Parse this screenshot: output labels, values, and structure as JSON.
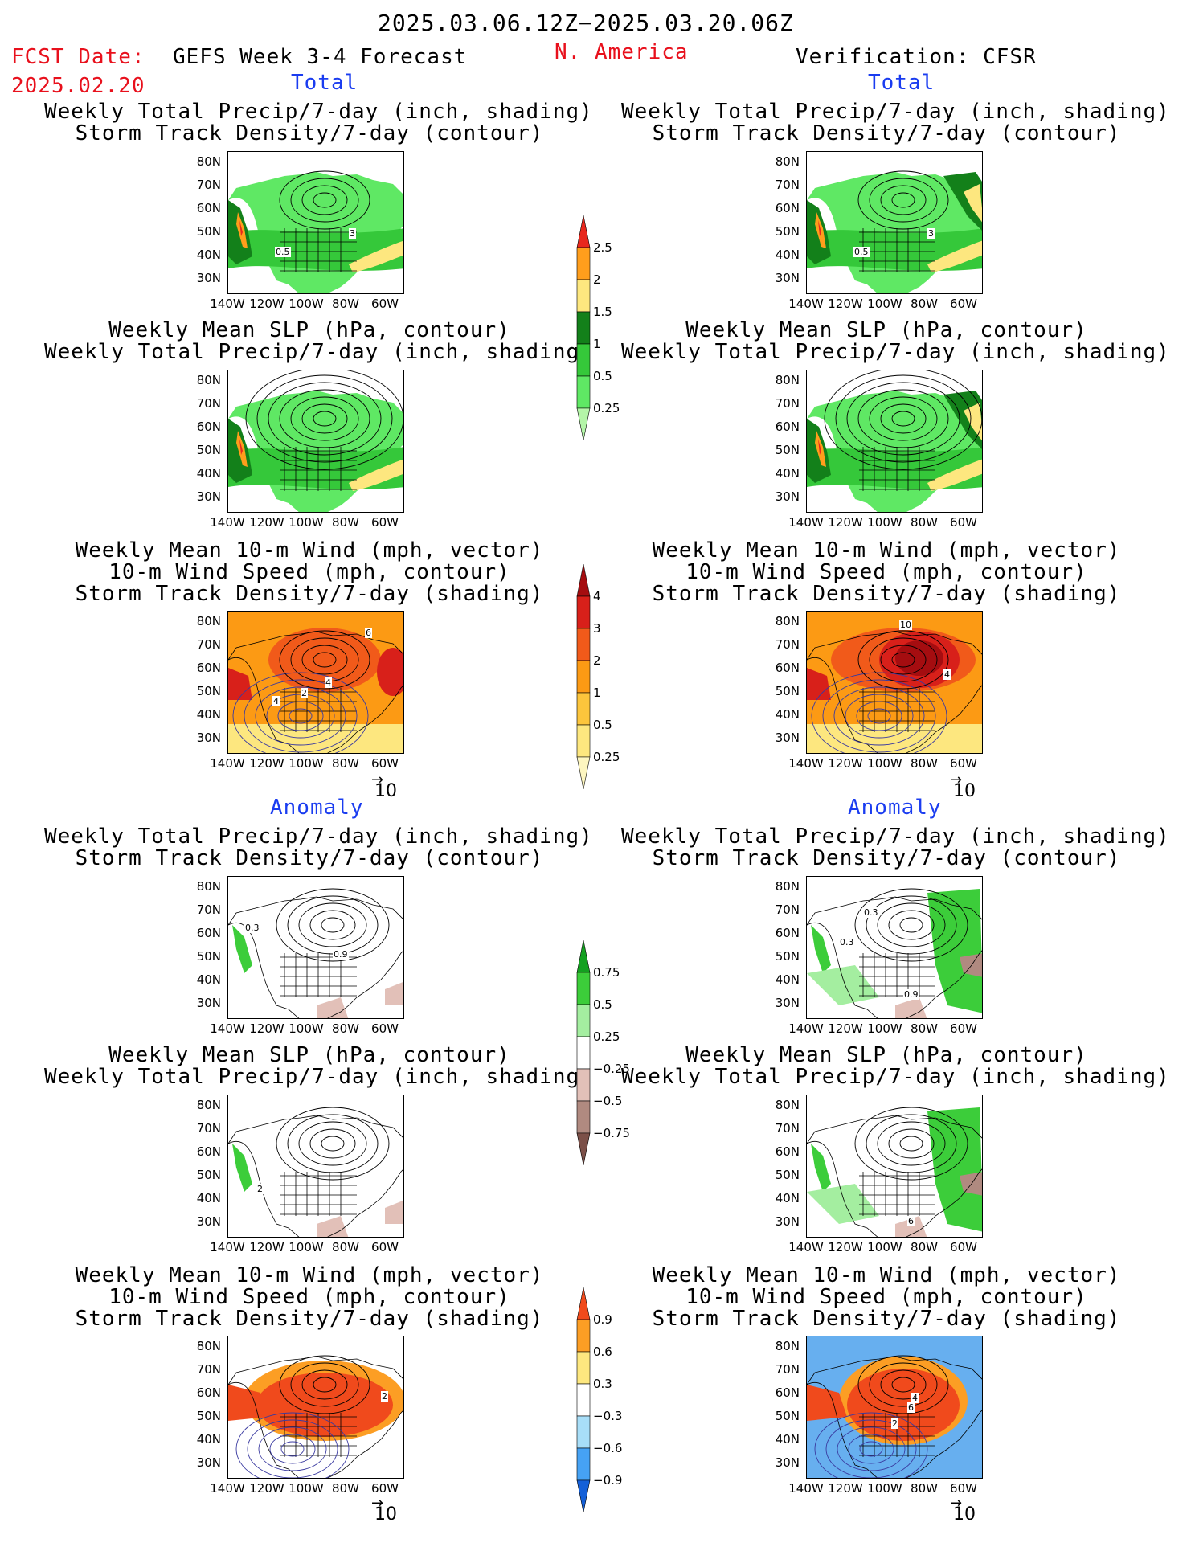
{
  "header": {
    "period": "2025.03.06.12Z−2025.03.20.06Z",
    "fcst_label": "FCST Date:",
    "fcst_date": "2025.02.20",
    "model_title": "GEFS Week 3-4 Forecast",
    "region": "N. America",
    "verification": "Verification: CFSR"
  },
  "sections": {
    "total_left": "Total",
    "total_right": "Total",
    "anomaly_left": "Anomaly",
    "anomaly_right": "Anomaly"
  },
  "panel_titles": {
    "precip_storm": [
      "Weekly Total Precip/7-day (inch, shading)",
      "Storm Track Density/7-day (contour)"
    ],
    "slp_precip": [
      "Weekly Mean SLP (hPa, contour)",
      "Weekly Total Precip/7-day (inch, shading)"
    ],
    "wind_storm": [
      "Weekly Mean 10-m Wind (mph, vector)",
      "10-m Wind Speed (mph, contour)",
      "Storm Track Density/7-day (shading)"
    ]
  },
  "axes": {
    "lat_labels": [
      "80N",
      "70N",
      "60N",
      "50N",
      "40N",
      "30N"
    ],
    "lon_labels": [
      "140W",
      "120W",
      "100W",
      "80W",
      "60W"
    ]
  },
  "vector_ref": "10",
  "colorbars": {
    "precip_total": {
      "labels": [
        "2.5",
        "2",
        "1.5",
        "1",
        "0.5",
        "0.25"
      ],
      "colors": [
        "#e8281e",
        "#ff9e1c",
        "#fde77f",
        "#13801a",
        "#35c83a",
        "#5fe864",
        "#b4f5a8"
      ]
    },
    "storm_total": {
      "labels": [
        "4",
        "3",
        "2",
        "1",
        "0.5",
        "0.25"
      ],
      "colors": [
        "#a50d10",
        "#d8201a",
        "#f15a1a",
        "#fc9a14",
        "#fcc53c",
        "#fde77f",
        "#fdf6c0"
      ]
    },
    "precip_anom": {
      "labels": [
        "0.75",
        "0.5",
        "0.25",
        "−0.25",
        "−0.5",
        "−0.75"
      ],
      "colors": [
        "#13a020",
        "#3ccd3a",
        "#a4eea0",
        "#ffffff",
        "#e2c0b8",
        "#b08a80",
        "#7c5048"
      ]
    },
    "storm_anom": {
      "labels": [
        "0.9",
        "0.6",
        "0.3",
        "−0.3",
        "−0.6",
        "−0.9"
      ],
      "colors": [
        "#f04a1c",
        "#fc9e24",
        "#fde77f",
        "#ffffff",
        "#a8def8",
        "#46a2f4",
        "#1460d8"
      ]
    }
  },
  "map_annotations": {
    "p1": [
      "0.5",
      "3"
    ],
    "p3": [
      "2",
      "4",
      "4",
      "6"
    ],
    "p3r": [
      "10",
      "4"
    ],
    "a1": [
      "0.3",
      "0.9"
    ],
    "a1r": [
      "0.3",
      "0.3",
      "0.9"
    ],
    "a2": [
      "2"
    ],
    "a2r": [
      "6"
    ],
    "a3": [
      "2"
    ],
    "a3r": [
      "4",
      "6",
      "2"
    ]
  }
}
